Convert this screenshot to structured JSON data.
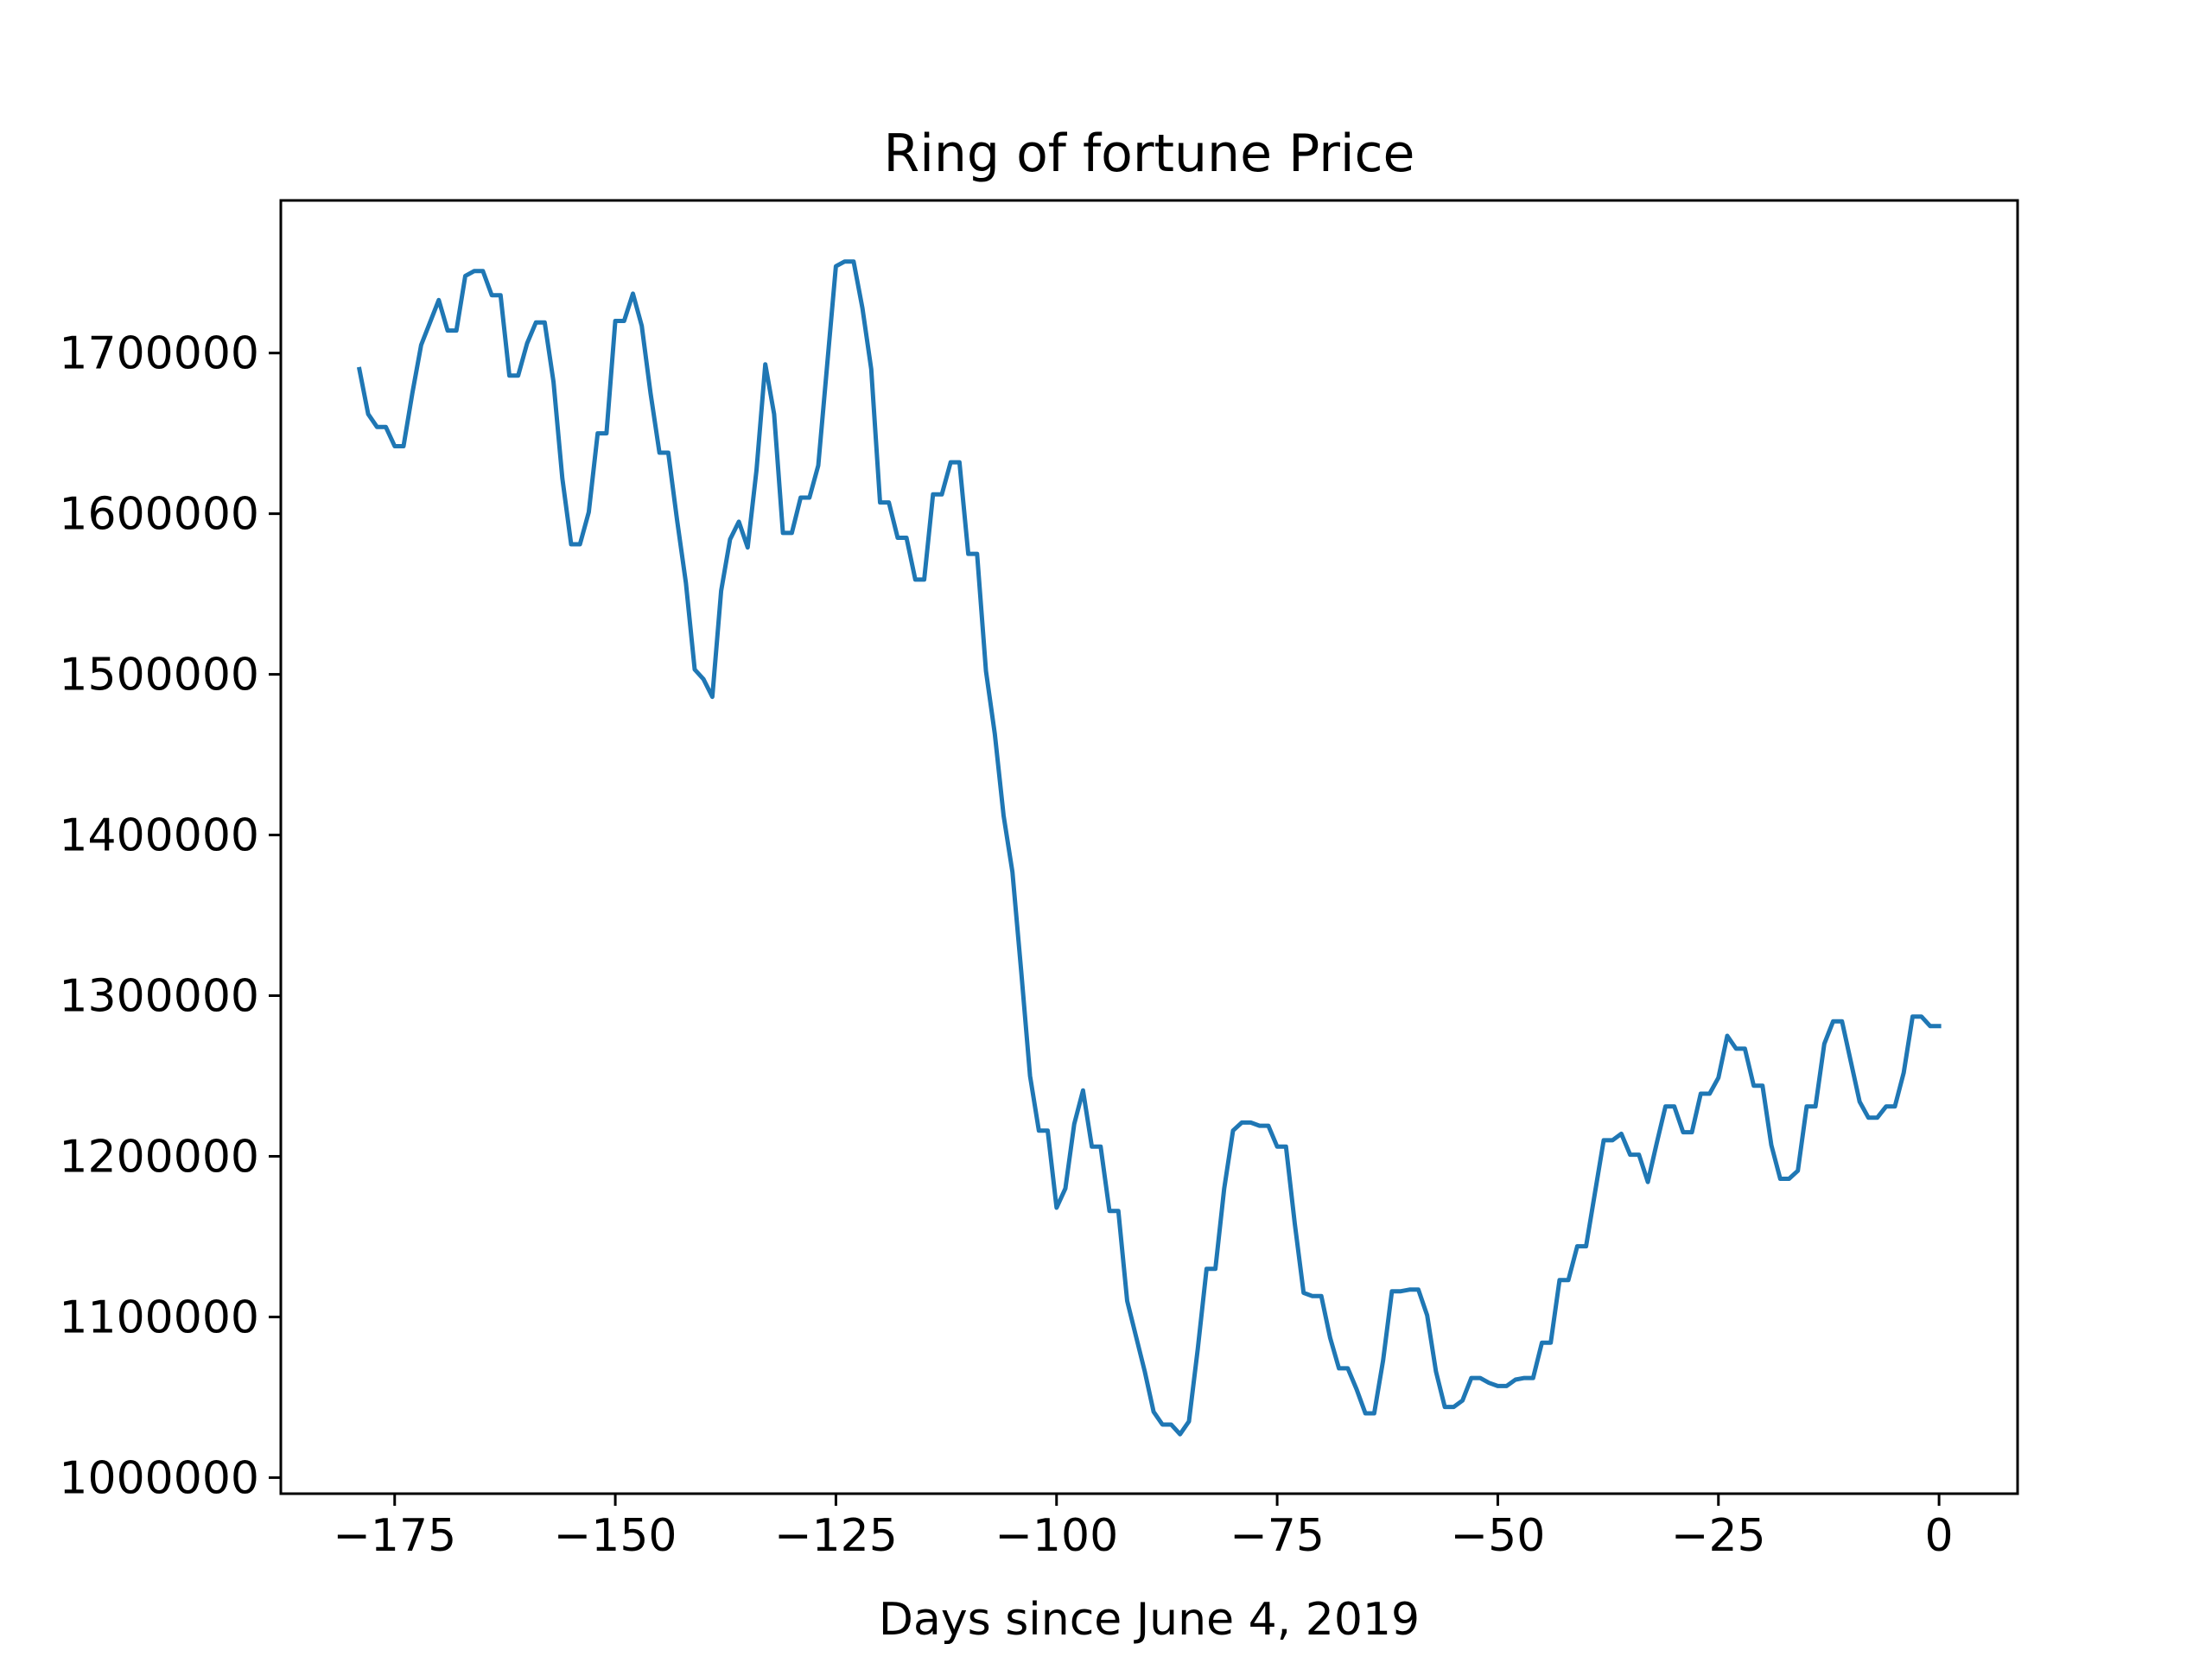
{
  "chart_data": {
    "type": "line",
    "title": "Ring of fortune Price",
    "xlabel": "Days since June 4, 2019",
    "ylabel": "",
    "xlim": [
      -187.9,
      8.9
    ],
    "ylim": [
      990000,
      1795000
    ],
    "xticks": [
      -175,
      -150,
      -125,
      -100,
      -75,
      -50,
      -25,
      0
    ],
    "xtick_labels": [
      "−175",
      "−150",
      "−125",
      "−100",
      "−75",
      "−50",
      "−25",
      "0"
    ],
    "yticks": [
      1000000,
      1100000,
      1200000,
      1300000,
      1400000,
      1500000,
      1600000,
      1700000
    ],
    "ytick_labels": [
      "1000000",
      "1100000",
      "1200000",
      "1300000",
      "1400000",
      "1500000",
      "1600000",
      "1700000"
    ],
    "grid": false,
    "legend": "none",
    "colors": {
      "line": "#1f77b4",
      "axes": "#000000",
      "background": "#ffffff"
    },
    "series": [
      {
        "x": [
          -179,
          -178,
          -177,
          -176,
          -175,
          -174,
          -173,
          -172,
          -171,
          -170,
          -169,
          -168,
          -167,
          -166,
          -165,
          -164,
          -163,
          -162,
          -161,
          -160,
          -159,
          -158,
          -157,
          -156,
          -155,
          -154,
          -153,
          -152,
          -151,
          -150,
          -149,
          -148,
          -147,
          -146,
          -145,
          -144,
          -143,
          -142,
          -141,
          -140,
          -139,
          -138,
          -137,
          -136,
          -135,
          -134,
          -133,
          -132,
          -131,
          -130,
          -129,
          -128,
          -127,
          -126,
          -125,
          -124,
          -123,
          -122,
          -121,
          -120,
          -119,
          -118,
          -117,
          -116,
          -115,
          -114,
          -113,
          -112,
          -111,
          -110,
          -109,
          -108,
          -107,
          -106,
          -105,
          -104,
          -103,
          -102,
          -101,
          -100,
          -99,
          -98,
          -97,
          -96,
          -95,
          -94,
          -93,
          -92,
          -91,
          -90,
          -89,
          -88,
          -87,
          -86,
          -85,
          -84,
          -83,
          -82,
          -81,
          -80,
          -79,
          -78,
          -77,
          -76,
          -75,
          -74,
          -73,
          -72,
          -71,
          -70,
          -69,
          -68,
          -67,
          -66,
          -65,
          -64,
          -63,
          -62,
          -61,
          -60,
          -59,
          -58,
          -57,
          -56,
          -55,
          -54,
          -53,
          -52,
          -51,
          -50,
          -49,
          -48,
          -47,
          -46,
          -45,
          -44,
          -43,
          -42,
          -41,
          -40,
          -39,
          -38,
          -37,
          -36,
          -35,
          -34,
          -33,
          -32,
          -31,
          -30,
          -29,
          -28,
          -27,
          -26,
          -25,
          -24,
          -23,
          -22,
          -21,
          -20,
          -19,
          -18,
          -17,
          -16,
          -15,
          -14,
          -13,
          -12,
          -11,
          -10,
          -9,
          -8,
          -7,
          -6,
          -5,
          -4,
          -3,
          -2,
          -1,
          0
        ],
        "values": [
          1690000,
          1662000,
          1654000,
          1654000,
          1642000,
          1642000,
          1675000,
          1705000,
          1719000,
          1733000,
          1714000,
          1714000,
          1748000,
          1751000,
          1751000,
          1736000,
          1736000,
          1686000,
          1686000,
          1706000,
          1719000,
          1719000,
          1682000,
          1622000,
          1581000,
          1581000,
          1601000,
          1650000,
          1650000,
          1720000,
          1720000,
          1737000,
          1717000,
          1675000,
          1638000,
          1638000,
          1596000,
          1557000,
          1503000,
          1497000,
          1486000,
          1552000,
          1584000,
          1595000,
          1579000,
          1627000,
          1693000,
          1662000,
          1588000,
          1588000,
          1610000,
          1610000,
          1630000,
          1692000,
          1754000,
          1757000,
          1757000,
          1728000,
          1690000,
          1607000,
          1607000,
          1585000,
          1585000,
          1559000,
          1559000,
          1612000,
          1612000,
          1632000,
          1632000,
          1575000,
          1575000,
          1502000,
          1463000,
          1412000,
          1377000,
          1315000,
          1250000,
          1216000,
          1216000,
          1168000,
          1180000,
          1220000,
          1241000,
          1206000,
          1206000,
          1166000,
          1166000,
          1110000,
          1088000,
          1066000,
          1041000,
          1033000,
          1033000,
          1027000,
          1035000,
          1080000,
          1130000,
          1130000,
          1180000,
          1216000,
          1221000,
          1221000,
          1219000,
          1219000,
          1206000,
          1206000,
          1158000,
          1115000,
          1113000,
          1113000,
          1087000,
          1068000,
          1068000,
          1055000,
          1040000,
          1040000,
          1073000,
          1116000,
          1116000,
          1117000,
          1117000,
          1101000,
          1066000,
          1044000,
          1044000,
          1048000,
          1062000,
          1062000,
          1059000,
          1057000,
          1057000,
          1061000,
          1062000,
          1062000,
          1084000,
          1084000,
          1123000,
          1123000,
          1144000,
          1144000,
          1177000,
          1210000,
          1210000,
          1214000,
          1201000,
          1201000,
          1184000,
          1208000,
          1231000,
          1231000,
          1215000,
          1215000,
          1239000,
          1239000,
          1249000,
          1275000,
          1267000,
          1267000,
          1244000,
          1244000,
          1207000,
          1186000,
          1186000,
          1191000,
          1231000,
          1231000,
          1270000,
          1284000,
          1284000,
          1259000,
          1234000,
          1224000,
          1224000,
          1231000,
          1231000,
          1252000,
          1287000,
          1287000,
          1281000,
          1281000
        ]
      }
    ]
  }
}
